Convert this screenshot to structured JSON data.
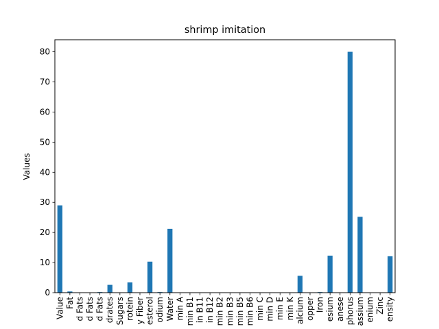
{
  "chart_data": {
    "type": "bar",
    "title": "shrimp imitation",
    "xlabel": "",
    "ylabel": "Values",
    "categories": [
      "Value",
      "Fat",
      "d Fats",
      "d Fats",
      "d Fats",
      "drates",
      "Sugars",
      "rotein",
      "y Fiber",
      "esterol",
      "odium",
      "Water",
      "min A",
      "min B1",
      "in B11",
      "in B12",
      "min B2",
      "min B3",
      "min B5",
      "min B6",
      "min C",
      "min D",
      "min E",
      "min K",
      "alcium",
      "opper",
      "Iron",
      "esium",
      "anese",
      "phorus",
      "assium",
      "enium",
      "Zinc",
      "ensity"
    ],
    "values": [
      29.0,
      0.4,
      0.1,
      0.1,
      0.2,
      2.6,
      0.0,
      3.4,
      0.0,
      10.3,
      0.2,
      21.2,
      0,
      0,
      0,
      0,
      0,
      0,
      0,
      0,
      0,
      0,
      0,
      0,
      5.6,
      0.1,
      0.2,
      12.3,
      0.1,
      80.0,
      25.2,
      0.1,
      0.1,
      12.1
    ],
    "yticks": [
      0,
      10,
      20,
      30,
      40,
      50,
      60,
      70,
      80
    ],
    "ylim": [
      0,
      84
    ],
    "grid": false,
    "legend": "none",
    "bar_color": "#1f77b4"
  }
}
